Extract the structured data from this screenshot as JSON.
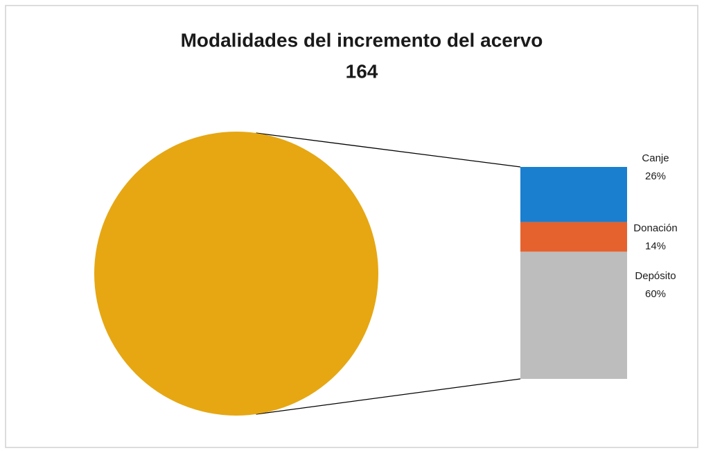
{
  "chart_data": {
    "type": "pie",
    "title": "Modalidades del incremento del acervo",
    "subtitle": "164",
    "pie_color": "#e6a713",
    "categories": [
      "Canje",
      "Donación",
      "Depósito"
    ],
    "values": [
      26,
      14,
      60
    ],
    "value_labels": [
      "26%",
      "14%",
      "60%"
    ],
    "colors": [
      "#1a7fcf",
      "#e5622e",
      "#bdbdbd"
    ]
  }
}
